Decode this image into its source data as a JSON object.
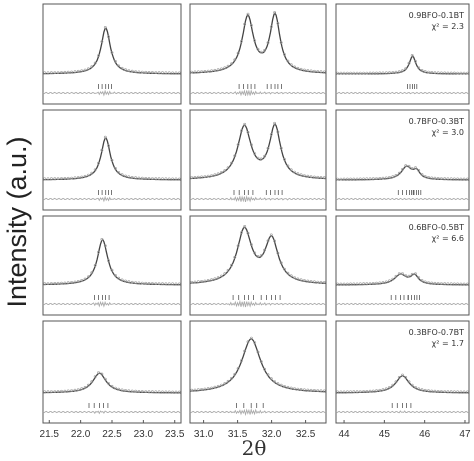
{
  "figure": {
    "ylabel": "Intensity (a.u.)",
    "xlabel": "2θ"
  },
  "chart_data": {
    "type": "line",
    "ylabel": "Intensity (a.u.)",
    "xlabel": "2θ",
    "columns": [
      {
        "xlim": [
          21.4,
          23.6
        ],
        "ticks": [
          "21.5",
          "22.0",
          "22.5",
          "23.0",
          "23.5"
        ],
        "tick_values": [
          21.5,
          22.0,
          22.5,
          23.0,
          23.5
        ]
      },
      {
        "xlim": [
          30.8,
          32.8
        ],
        "ticks": [
          "31.0",
          "31.5",
          "32.0",
          "32.5"
        ],
        "tick_values": [
          31.0,
          31.5,
          32.0,
          32.5
        ]
      },
      {
        "xlim": [
          43.8,
          47.1
        ],
        "ticks": [
          "44",
          "45",
          "46",
          "47"
        ],
        "tick_values": [
          44,
          45,
          46,
          47
        ]
      }
    ],
    "rows": [
      {
        "label": "0.9BFO-0.1BT",
        "chi": "χ² = 2.3",
        "peaks": [
          [
            {
              "center": 22.4,
              "height": 0.72,
              "width": 0.09
            }
          ],
          [
            {
              "center": 31.65,
              "height": 0.88,
              "width": 0.1
            },
            {
              "center": 32.05,
              "height": 0.9,
              "width": 0.09
            }
          ],
          [
            {
              "center": 45.7,
              "height": 0.28,
              "width": 0.1
            }
          ]
        ]
      },
      {
        "label": "0.7BFO-0.3BT",
        "chi": "χ² = 3.0",
        "peaks": [
          [
            {
              "center": 22.4,
              "height": 0.66,
              "width": 0.09
            }
          ],
          [
            {
              "center": 31.6,
              "height": 0.82,
              "width": 0.12
            },
            {
              "center": 32.05,
              "height": 0.82,
              "width": 0.1
            }
          ],
          [
            {
              "center": 45.55,
              "height": 0.2,
              "width": 0.16
            },
            {
              "center": 45.8,
              "height": 0.12,
              "width": 0.1
            }
          ]
        ]
      },
      {
        "label": "0.6BFO-0.5BT",
        "chi": "χ² = 6.6",
        "peaks": [
          [
            {
              "center": 22.35,
              "height": 0.72,
              "width": 0.1
            }
          ],
          [
            {
              "center": 31.6,
              "height": 0.86,
              "width": 0.13
            },
            {
              "center": 32.0,
              "height": 0.7,
              "width": 0.12
            }
          ],
          [
            {
              "center": 45.4,
              "height": 0.16,
              "width": 0.18
            },
            {
              "center": 45.75,
              "height": 0.14,
              "width": 0.12
            }
          ]
        ]
      },
      {
        "label": "0.3BFO-0.7BT",
        "chi": "χ² = 1.7",
        "peaks": [
          [
            {
              "center": 22.3,
              "height": 0.3,
              "width": 0.13
            }
          ],
          [
            {
              "center": 31.7,
              "height": 0.82,
              "width": 0.17
            }
          ],
          [
            {
              "center": 45.45,
              "height": 0.26,
              "width": 0.2
            }
          ]
        ]
      }
    ]
  }
}
